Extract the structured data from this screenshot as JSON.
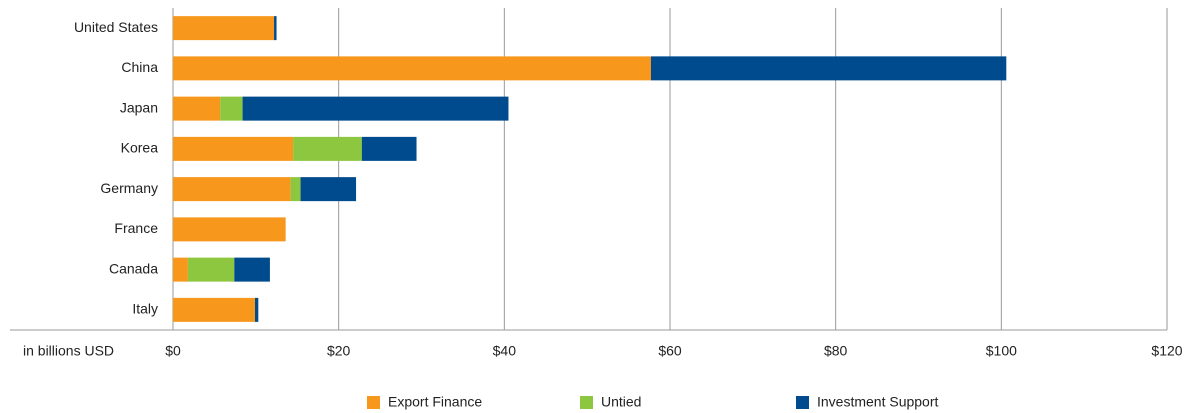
{
  "chart_data": {
    "type": "stacked-barh",
    "xlabel": "in billions USD",
    "categories": [
      "United States",
      "China",
      "Japan",
      "Korea",
      "Germany",
      "France",
      "Canada",
      "Italy"
    ],
    "series": [
      {
        "name": "Export Finance",
        "color": "#f7981d",
        "values": [
          12.2,
          57.7,
          5.7,
          14.5,
          14.2,
          13.6,
          1.8,
          9.9
        ]
      },
      {
        "name": "Untied",
        "color": "#8dc63f",
        "values": [
          0,
          0,
          2.7,
          8.3,
          1.2,
          0,
          5.6,
          0
        ]
      },
      {
        "name": "Investment Support",
        "color": "#004b8d",
        "values": [
          0.3,
          42.9,
          32.1,
          6.6,
          6.7,
          0,
          4.3,
          0.4
        ]
      }
    ],
    "xlim": [
      0,
      120
    ],
    "xticks": [
      {
        "value": 0,
        "label": "$0"
      },
      {
        "value": 20,
        "label": "$20"
      },
      {
        "value": 40,
        "label": "$40"
      },
      {
        "value": 60,
        "label": "$60"
      },
      {
        "value": 80,
        "label": "$80"
      },
      {
        "value": 100,
        "label": "$100"
      },
      {
        "value": 120,
        "label": "$120"
      }
    ],
    "grid": true,
    "legend": "bottom"
  }
}
